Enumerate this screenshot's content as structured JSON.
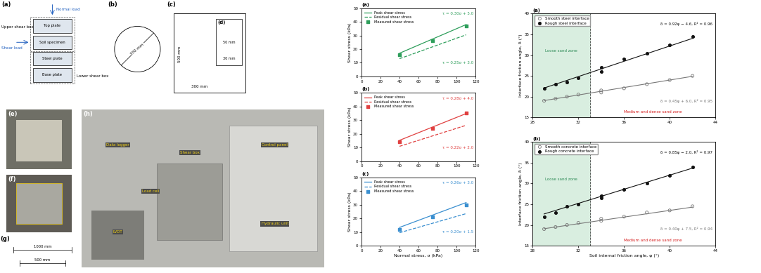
{
  "diagram": {
    "schematic": {
      "tag": "(a)",
      "upper_box": "Upper shear box",
      "lower_box": "Lower shear box",
      "normal_load": "Normal load",
      "shear_load": "Shear load",
      "layers": [
        "Top plate",
        "Soil specimen",
        "Steel plate",
        "Base plate"
      ]
    },
    "circle": {
      "tag": "(b)",
      "diameter": "300 mm"
    },
    "plate": {
      "tag": "(c)",
      "length": "500 mm",
      "width": "300 mm"
    },
    "inset": {
      "tag": "(d)",
      "length": "50 mm",
      "width": "30 mm"
    },
    "photo_top": {
      "tag": "(e)"
    },
    "photo_box": {
      "tag": "(f)"
    },
    "drawing": {
      "tag": "(g)",
      "length": "1000 mm",
      "height": "500 mm"
    },
    "photo_setup": {
      "tag": "(h)",
      "labels": [
        "Data logger",
        "Load cell",
        "LVDT",
        "Shear box",
        "Control panel",
        "Hydraulic unit"
      ]
    }
  },
  "chart_data": [
    {
      "type": "line",
      "panel": "(a)",
      "x": [
        40,
        75,
        110
      ],
      "xlim": [
        0,
        120
      ],
      "xticks": [
        0,
        20,
        40,
        60,
        80,
        100,
        120
      ],
      "ylim": [
        0,
        50
      ],
      "yticks": [
        0,
        10,
        20,
        30,
        40,
        50
      ],
      "ylabel": "Shear stress (kPa)",
      "legend": "upper left",
      "series": [
        {
          "name": "Peak shear stress",
          "type": "line",
          "color": "#2e9e5b",
          "line_style": "solid",
          "values": [
            17.0,
            27.5,
            38.0
          ],
          "equation": "τ = 0.30σ + 5.0"
        },
        {
          "name": "Residual shear stress",
          "type": "line",
          "color": "#2e9e5b",
          "line_style": "dashed",
          "values": [
            13.0,
            21.75,
            30.5
          ],
          "equation": "τ = 0.25σ + 3.0"
        },
        {
          "name": "Measured shear stress",
          "type": "scatter",
          "color": "#2e9e5b",
          "marker": "square",
          "values": [
            16,
            26,
            37
          ]
        }
      ]
    },
    {
      "type": "line",
      "panel": "(b)",
      "x": [
        40,
        75,
        110
      ],
      "xlim": [
        0,
        120
      ],
      "xticks": [
        0,
        20,
        40,
        60,
        80,
        100,
        120
      ],
      "ylim": [
        0,
        50
      ],
      "yticks": [
        0,
        10,
        20,
        30,
        40,
        50
      ],
      "ylabel": "Shear stress (kPa)",
      "legend": "upper left",
      "series": [
        {
          "name": "Peak shear stress",
          "type": "line",
          "color": "#e04040",
          "line_style": "solid",
          "values": [
            15.2,
            25.0,
            34.8
          ],
          "equation": "τ = 0.28σ + 4.0"
        },
        {
          "name": "Residual shear stress",
          "type": "line",
          "color": "#e04040",
          "line_style": "dashed",
          "values": [
            10.8,
            18.5,
            26.2
          ],
          "equation": "τ = 0.22σ + 2.0"
        },
        {
          "name": "Measured shear stress",
          "type": "scatter",
          "color": "#e04040",
          "marker": "square",
          "values": [
            14,
            24,
            35
          ]
        }
      ]
    },
    {
      "type": "line",
      "panel": "(c)",
      "x": [
        40,
        75,
        110
      ],
      "xlim": [
        0,
        120
      ],
      "xticks": [
        0,
        20,
        40,
        60,
        80,
        100,
        120
      ],
      "ylim": [
        0,
        50
      ],
      "yticks": [
        0,
        10,
        20,
        30,
        40,
        50
      ],
      "ylabel": "Shear stress (kPa)",
      "xlabel": "Normal stress, σ (kPa)",
      "legend": "upper left",
      "series": [
        {
          "name": "Peak shear stress",
          "type": "line",
          "color": "#3a8fd0",
          "line_style": "solid",
          "values": [
            13.4,
            22.5,
            31.6
          ],
          "equation": "τ = 0.26σ + 3.0"
        },
        {
          "name": "Residual shear stress",
          "type": "line",
          "color": "#3a8fd0",
          "line_style": "dashed",
          "values": [
            9.5,
            16.5,
            23.5
          ],
          "equation": "τ = 0.20σ + 1.5"
        },
        {
          "name": "Measured shear stress",
          "type": "scatter",
          "color": "#3a8fd0",
          "marker": "square",
          "values": [
            12,
            21,
            30
          ]
        }
      ]
    },
    {
      "type": "scatter",
      "panel": "(a)",
      "xlim": [
        28,
        44
      ],
      "xticks": [
        28,
        32,
        36,
        40,
        44
      ],
      "ylim": [
        15,
        40
      ],
      "yticks": [
        15,
        20,
        25,
        30,
        35,
        40
      ],
      "ylabel": "Interface friction angle, δ (°)",
      "legend": "upper left",
      "zone_boundary": 33,
      "zone_label": "Loose sand zone",
      "zone_label_2": "Medium and dense sand zone",
      "series": [
        {
          "name": "Smooth steel interface",
          "color": "#777777",
          "marker": "open_circle",
          "x": [
            29,
            30,
            31,
            32,
            34,
            34,
            36,
            38,
            40,
            42
          ],
          "values": [
            19,
            19.5,
            20,
            20.5,
            21,
            21.5,
            22,
            23,
            24,
            25
          ],
          "fit": {
            "slope": 0.45,
            "intercept": 6.0,
            "equation": "δ = 0.45φ + 6.0, R² = 0.95"
          }
        },
        {
          "name": "Rough steel interface",
          "color": "#111111",
          "marker": "filled_circle",
          "x": [
            29,
            30,
            31,
            32,
            34,
            34,
            36,
            38,
            40,
            42
          ],
          "values": [
            22,
            23,
            23.5,
            24.5,
            26,
            27,
            29,
            30.5,
            32.5,
            34.5
          ],
          "fit": {
            "slope": 0.92,
            "intercept": -4.6,
            "equation": "δ = 0.92φ − 4.6, R² = 0.96"
          }
        }
      ]
    },
    {
      "type": "scatter",
      "panel": "(b)",
      "xlim": [
        28,
        44
      ],
      "xticks": [
        28,
        32,
        36,
        40,
        44
      ],
      "ylim": [
        15,
        40
      ],
      "yticks": [
        15,
        20,
        25,
        30,
        35,
        40
      ],
      "ylabel": "Interface friction angle, δ (°)",
      "xlabel": "Soil internal friction angle, φ (°)",
      "legend": "upper left",
      "zone_boundary": 33,
      "zone_label": "Loose sand zone",
      "zone_label_2": "Medium and dense sand zone",
      "series": [
        {
          "name": "Smooth concrete interface",
          "color": "#777777",
          "marker": "open_circle",
          "x": [
            29,
            30,
            31,
            32,
            34,
            34,
            36,
            38,
            40,
            42
          ],
          "values": [
            19,
            19.5,
            20,
            20.5,
            21,
            21.5,
            22,
            23,
            23.5,
            24.5
          ],
          "fit": {
            "slope": 0.4,
            "intercept": 7.5,
            "equation": "δ = 0.40φ + 7.5, R² = 0.94"
          }
        },
        {
          "name": "Rough concrete interface",
          "color": "#111111",
          "marker": "filled_circle",
          "x": [
            29,
            30,
            31,
            32,
            34,
            34,
            36,
            38,
            40,
            42
          ],
          "values": [
            22,
            23,
            24.5,
            25,
            27,
            26.5,
            28.5,
            30,
            32,
            34
          ],
          "fit": {
            "slope": 0.85,
            "intercept": -2.0,
            "equation": "δ = 0.85φ − 2.0, R² = 0.97"
          }
        }
      ]
    }
  ]
}
